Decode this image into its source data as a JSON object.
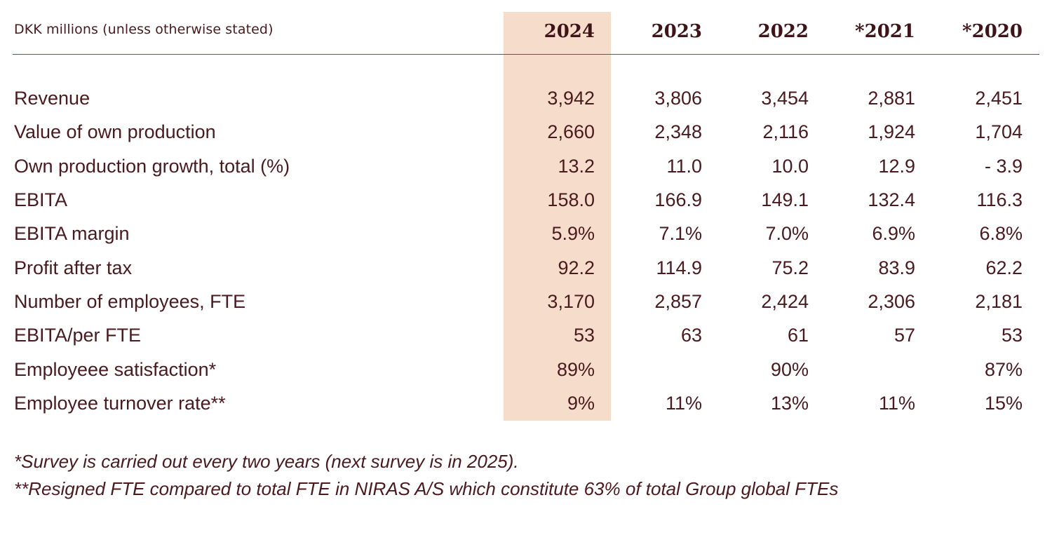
{
  "header": {
    "unit_label": "DKK millions (unless otherwise stated)",
    "years": [
      "2024",
      "2023",
      "2022",
      "*2021",
      "*2020"
    ]
  },
  "colors": {
    "highlight": "#f5dccb",
    "text": "#4a1a1e",
    "rule": "#7a4a4c"
  },
  "rows": [
    {
      "label": "Revenue",
      "values": [
        "3,942",
        "3,806",
        "3,454",
        "2,881",
        "2,451"
      ]
    },
    {
      "label": "Value of own production",
      "values": [
        "2,660",
        "2,348",
        "2,116",
        "1,924",
        "1,704"
      ]
    },
    {
      "label": "Own production growth, total (%)",
      "values": [
        "13.2",
        "11.0",
        "10.0",
        "12.9",
        "- 3.9"
      ]
    },
    {
      "label": "EBITA",
      "values": [
        "158.0",
        "166.9",
        "149.1",
        "132.4",
        "116.3"
      ]
    },
    {
      "label": "EBITA margin",
      "values": [
        "5.9%",
        "7.1%",
        "7.0%",
        "6.9%",
        "6.8%"
      ]
    },
    {
      "label": "Profit after tax",
      "values": [
        "92.2",
        "114.9",
        "75.2",
        "83.9",
        "62.2"
      ]
    },
    {
      "label": "Number of employees, FTE",
      "values": [
        "3,170",
        "2,857",
        "2,424",
        "2,306",
        "2,181"
      ]
    },
    {
      "label": "EBITA/per FTE",
      "values": [
        "53",
        "63",
        "61",
        "57",
        "53"
      ]
    },
    {
      "label": "Employeee satisfaction*",
      "values": [
        "89%",
        "",
        "90%",
        "",
        "87%"
      ]
    },
    {
      "label": "Employee turnover rate**",
      "values": [
        "9%",
        "11%",
        "13%",
        "11%",
        "15%"
      ]
    }
  ],
  "footnotes": [
    "*Survey is carried out every two years (next survey is in 2025).",
    "**Resigned FTE compared to total FTE in NIRAS A/S which constitute 63% of total Group global FTEs"
  ]
}
